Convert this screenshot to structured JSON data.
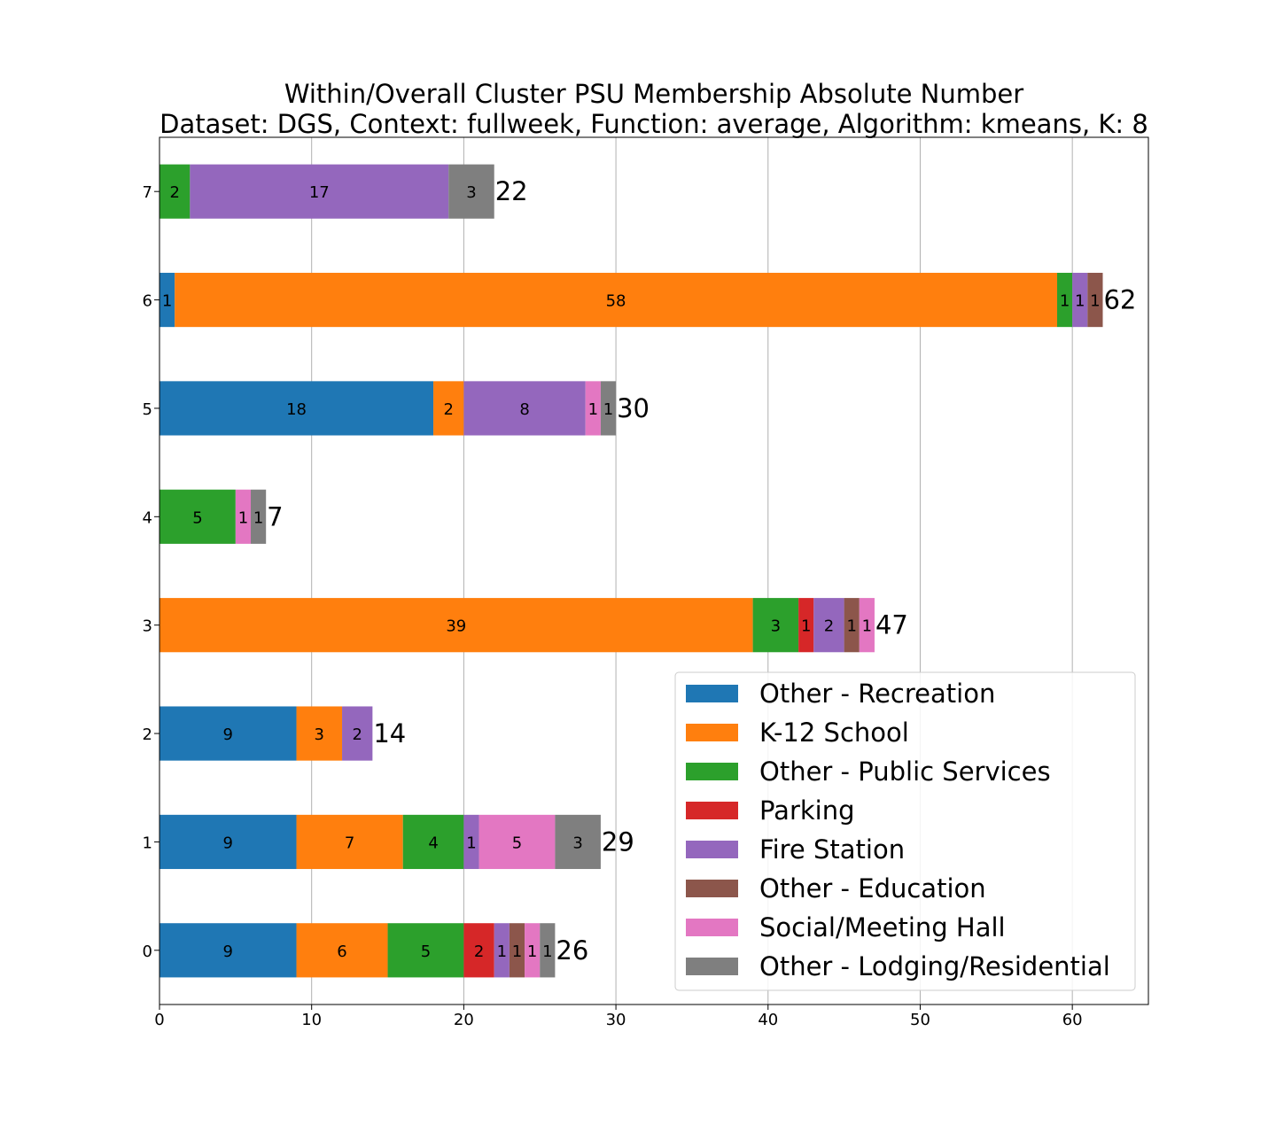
{
  "chart_data": {
    "type": "bar",
    "orientation": "horizontal",
    "stacked": true,
    "title": "Within/Overall Cluster PSU Membership Absolute Number",
    "subtitle": "Dataset: DGS, Context: fullweek, Function: average, Algorithm: kmeans, K: 8",
    "xlabel": "",
    "ylabel": "",
    "xlim": [
      0,
      65
    ],
    "x_ticks": [
      "0",
      "10",
      "20",
      "30",
      "40",
      "50",
      "60"
    ],
    "categories": [
      "0",
      "1",
      "2",
      "3",
      "4",
      "5",
      "6",
      "7"
    ],
    "grid": "vertical",
    "legend_position": "lower-right",
    "series": [
      {
        "name": "Other - Recreation",
        "color": "#1f77b4",
        "values": [
          9,
          9,
          9,
          0,
          0,
          18,
          1,
          0
        ]
      },
      {
        "name": "K-12 School",
        "color": "#ff7f0e",
        "values": [
          6,
          7,
          3,
          39,
          0,
          2,
          58,
          0
        ]
      },
      {
        "name": "Other - Public Services",
        "color": "#2ca02c",
        "values": [
          5,
          4,
          0,
          3,
          5,
          0,
          1,
          2
        ]
      },
      {
        "name": "Parking",
        "color": "#d62728",
        "values": [
          2,
          0,
          0,
          1,
          0,
          0,
          0,
          0
        ]
      },
      {
        "name": "Fire Station",
        "color": "#9467bd",
        "values": [
          1,
          1,
          2,
          2,
          0,
          8,
          1,
          17
        ]
      },
      {
        "name": "Other - Education",
        "color": "#8c564b",
        "values": [
          1,
          0,
          0,
          1,
          0,
          0,
          1,
          0
        ]
      },
      {
        "name": "Social/Meeting Hall",
        "color": "#e377c2",
        "values": [
          1,
          5,
          0,
          1,
          1,
          1,
          0,
          0
        ]
      },
      {
        "name": "Other - Lodging/Residential",
        "color": "#7f7f7f",
        "values": [
          1,
          3,
          0,
          0,
          1,
          1,
          0,
          3
        ]
      }
    ],
    "totals": [
      "26",
      "29",
      "14",
      "47",
      "7",
      "30",
      "62",
      "22"
    ]
  }
}
